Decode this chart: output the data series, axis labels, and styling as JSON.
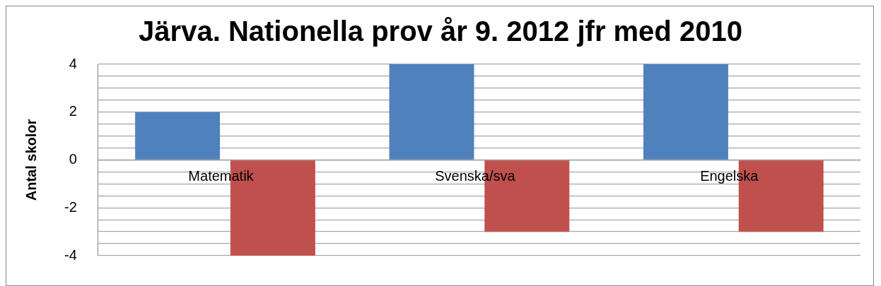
{
  "chart_data": {
    "type": "bar",
    "title": "Järva. Nationella prov år 9. 2012 jfr med 2010",
    "ylabel": "Antal skolor",
    "categories": [
      "Matematik",
      "Svenska/sva",
      "Engelska"
    ],
    "series": [
      {
        "color": "#4f81bd",
        "values": [
          2,
          4,
          4
        ]
      },
      {
        "color": "#c0504d",
        "values": [
          -4,
          -3,
          -3
        ]
      }
    ],
    "ylim": [
      -4,
      4
    ],
    "yticks": [
      -4,
      {
        "value": -3.5,
        "label": null
      },
      {
        "value": -3,
        "label": null
      },
      {
        "value": -2.5,
        "label": null
      },
      -2,
      {
        "value": -1.5,
        "label": null
      },
      {
        "value": -1,
        "label": null
      },
      {
        "value": -0.5,
        "label": null
      },
      0,
      {
        "value": 0.5,
        "label": null
      },
      {
        "value": 1,
        "label": null
      },
      {
        "value": 1.5,
        "label": null
      },
      2,
      {
        "value": 2.5,
        "label": null
      },
      {
        "value": 3,
        "label": null
      },
      {
        "value": 3.5,
        "label": null
      },
      4
    ],
    "grid": "y",
    "legend": false
  }
}
